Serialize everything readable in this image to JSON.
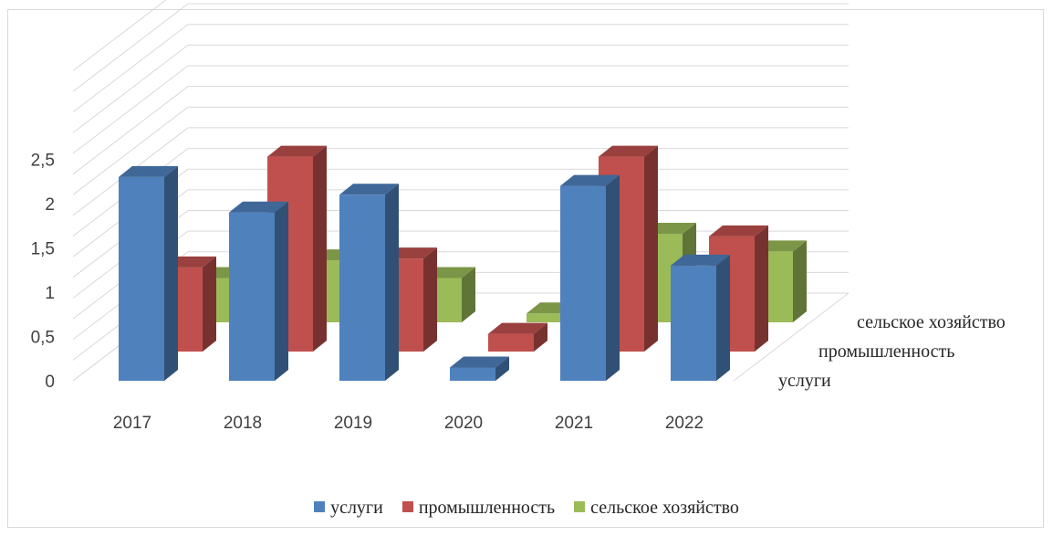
{
  "chart_data": {
    "type": "bar",
    "categories": [
      "2017",
      "2018",
      "2019",
      "2020",
      "2021",
      "2022"
    ],
    "series": [
      {
        "name": "услуги",
        "values": [
          2.3,
          1.9,
          2.1,
          0.15,
          2.2,
          1.3
        ],
        "color": "#4f81bd"
      },
      {
        "name": "промышленность",
        "values": [
          0.95,
          2.2,
          1.05,
          0.2,
          2.2,
          1.3
        ],
        "color": "#c0504d"
      },
      {
        "name": "сельское хозяйство",
        "values": [
          0.5,
          0.7,
          0.5,
          0.1,
          1.0,
          0.8
        ],
        "color": "#9bbb59"
      }
    ],
    "yticks": [
      "0",
      "0,5",
      "1",
      "1,5",
      "2",
      "2,5"
    ],
    "ylim": [
      0,
      3.5
    ],
    "grid": true,
    "legend": "bottom",
    "projection": "3d-column"
  }
}
